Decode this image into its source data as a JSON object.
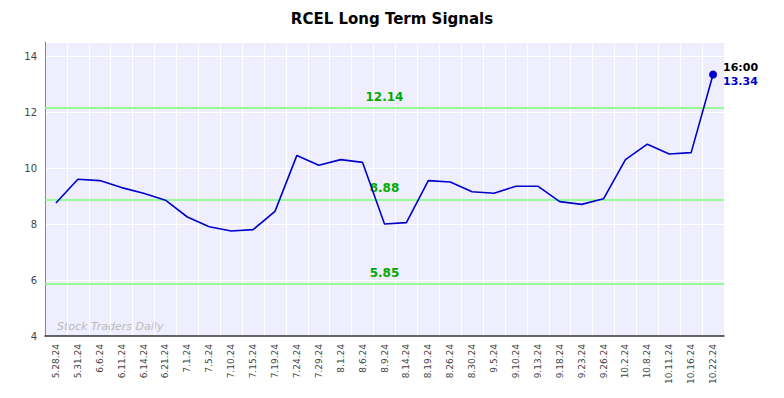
{
  "chart_data": {
    "type": "line",
    "title": "RCEL Long Term Signals",
    "categories": [
      "5.28.24",
      "5.31.24",
      "6.6.24",
      "6.11.24",
      "6.14.24",
      "6.21.24",
      "7.1.24",
      "7.5.24",
      "7.10.24",
      "7.15.24",
      "7.19.24",
      "7.24.24",
      "7.29.24",
      "8.1.24",
      "8.6.24",
      "8.9.24",
      "8.14.24",
      "8.19.24",
      "8.26.24",
      "8.30.24",
      "9.5.24",
      "9.10.24",
      "9.13.24",
      "9.18.24",
      "9.23.24",
      "9.26.24",
      "10.2.24",
      "10.8.24",
      "10.11.24",
      "10.16.24",
      "10.22.24"
    ],
    "values": [
      8.75,
      9.6,
      9.55,
      9.3,
      9.1,
      8.85,
      8.25,
      7.9,
      7.75,
      7.8,
      8.45,
      10.45,
      10.1,
      10.3,
      10.2,
      8.0,
      8.05,
      9.55,
      9.5,
      9.15,
      9.1,
      9.35,
      9.35,
      8.8,
      8.7,
      8.9,
      10.3,
      10.85,
      10.5,
      10.55,
      13.34
    ],
    "color": "#0000cc",
    "ylim": [
      4,
      14.5
    ],
    "yticks": [
      4,
      6,
      8,
      10,
      12,
      14
    ],
    "grid": true,
    "hlines": [
      {
        "value": 5.85,
        "label": "5.85",
        "color": "#77ff77"
      },
      {
        "value": 8.88,
        "label": "8.88",
        "color": "#77ff77"
      },
      {
        "value": 12.14,
        "label": "12.14",
        "color": "#77ff77"
      }
    ],
    "annotations": [
      {
        "text": "16:00",
        "color": "#000000"
      },
      {
        "text": "13.34",
        "color": "#0000cc"
      }
    ],
    "watermark": "Stock Traders Daily"
  }
}
